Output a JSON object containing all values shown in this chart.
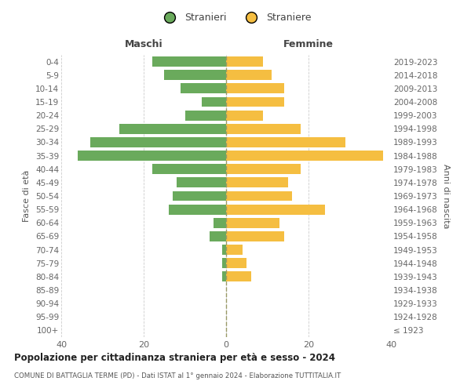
{
  "age_groups": [
    "100+",
    "95-99",
    "90-94",
    "85-89",
    "80-84",
    "75-79",
    "70-74",
    "65-69",
    "60-64",
    "55-59",
    "50-54",
    "45-49",
    "40-44",
    "35-39",
    "30-34",
    "25-29",
    "20-24",
    "15-19",
    "10-14",
    "5-9",
    "0-4"
  ],
  "birth_years": [
    "≤ 1923",
    "1924-1928",
    "1929-1933",
    "1934-1938",
    "1939-1943",
    "1944-1948",
    "1949-1953",
    "1954-1958",
    "1959-1963",
    "1964-1968",
    "1969-1973",
    "1974-1978",
    "1979-1983",
    "1984-1988",
    "1989-1993",
    "1994-1998",
    "1999-2003",
    "2004-2008",
    "2009-2013",
    "2014-2018",
    "2019-2023"
  ],
  "males": [
    0,
    0,
    0,
    0,
    1,
    1,
    1,
    4,
    3,
    14,
    13,
    12,
    18,
    36,
    33,
    26,
    10,
    6,
    11,
    15,
    18
  ],
  "females": [
    0,
    0,
    0,
    0,
    6,
    5,
    4,
    14,
    13,
    24,
    16,
    15,
    18,
    38,
    29,
    18,
    9,
    14,
    14,
    11,
    9
  ],
  "male_color": "#6aaa5c",
  "female_color": "#f5be41",
  "background_color": "#ffffff",
  "grid_color": "#cccccc",
  "title": "Popolazione per cittadinanza straniera per età e sesso - 2024",
  "subtitle": "COMUNE DI BATTAGLIA TERME (PD) - Dati ISTAT al 1° gennaio 2024 - Elaborazione TUTTITALIA.IT",
  "xlabel_left": "Maschi",
  "xlabel_right": "Femmine",
  "ylabel_left": "Fasce di età",
  "ylabel_right": "Anni di nascita",
  "legend_male": "Stranieri",
  "legend_female": "Straniere",
  "xlim": 40
}
